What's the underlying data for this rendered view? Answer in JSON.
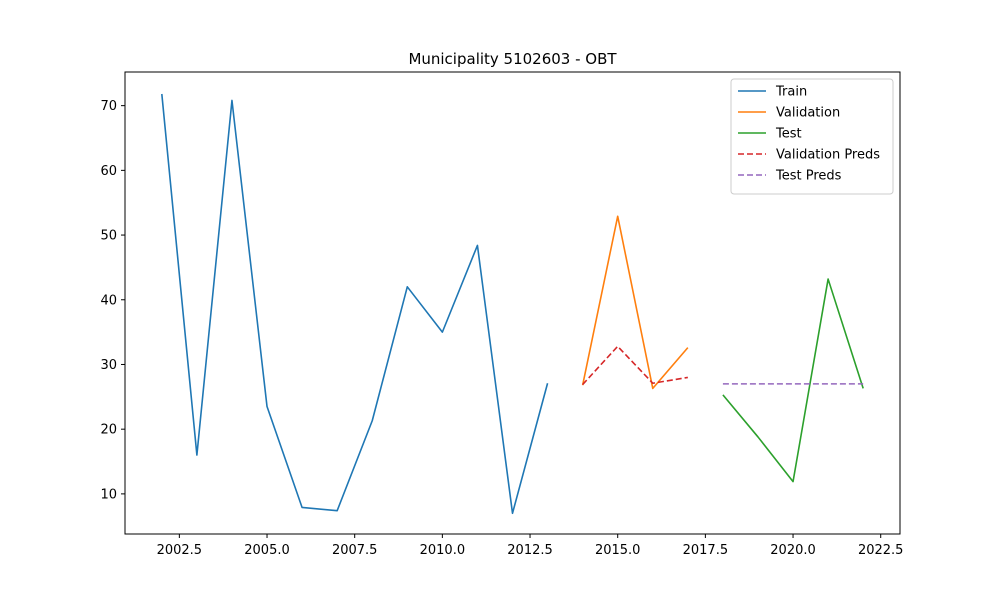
{
  "chart_data": {
    "type": "line",
    "title": "Municipality 5102603 - OBT",
    "xlabel": "",
    "ylabel": "",
    "xlim": [
      2000.95,
      2023.05
    ],
    "ylim": [
      3.8,
      75.2
    ],
    "xticks": [
      2002.5,
      2005.0,
      2007.5,
      2010.0,
      2012.5,
      2015.0,
      2017.5,
      2020.0,
      2022.5
    ],
    "xtick_labels": [
      "2002.5",
      "2005.0",
      "2007.5",
      "2010.0",
      "2012.5",
      "2015.0",
      "2017.5",
      "2020.0",
      "2022.5"
    ],
    "yticks": [
      10,
      20,
      30,
      40,
      50,
      60,
      70
    ],
    "ytick_labels": [
      "10",
      "20",
      "30",
      "40",
      "50",
      "60",
      "70"
    ],
    "grid": false,
    "legend_position": "top-right",
    "series": [
      {
        "name": "Train",
        "color": "#1f77b4",
        "dash": "solid",
        "x": [
          2002,
          2003,
          2004,
          2005,
          2006,
          2007,
          2008,
          2009,
          2010,
          2011,
          2012,
          2013
        ],
        "y": [
          71.8,
          16.0,
          70.8,
          23.5,
          7.9,
          7.4,
          21.3,
          42.0,
          35.0,
          48.4,
          7.0,
          27.1
        ]
      },
      {
        "name": "Validation",
        "color": "#ff7f0e",
        "dash": "solid",
        "x": [
          2014,
          2015,
          2016,
          2017
        ],
        "y": [
          26.8,
          52.9,
          26.3,
          32.6
        ]
      },
      {
        "name": "Test",
        "color": "#2ca02c",
        "dash": "solid",
        "x": [
          2018,
          2019,
          2020,
          2021,
          2022
        ],
        "y": [
          25.3,
          18.8,
          11.9,
          43.2,
          26.3
        ]
      },
      {
        "name": "Validation Preds",
        "color": "#d62728",
        "dash": "dashed",
        "x": [
          2014,
          2015,
          2016,
          2017
        ],
        "y": [
          26.9,
          32.8,
          27.1,
          28.0
        ]
      },
      {
        "name": "Test Preds",
        "color": "#9467bd",
        "dash": "dashed",
        "x": [
          2018,
          2019,
          2020,
          2021,
          2022
        ],
        "y": [
          27.0,
          27.0,
          27.0,
          27.0,
          27.0
        ]
      }
    ]
  }
}
